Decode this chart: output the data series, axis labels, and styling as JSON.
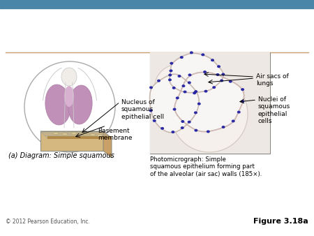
{
  "bg_color": "#ffffff",
  "top_bar_color": "#4a86a8",
  "top_bar_height": 12,
  "divider_color": "#c8a070",
  "copyright_text": "© 2012 Pearson Education, Inc.",
  "figure_label": "Figure 3.18a",
  "label_a": "(a) Diagram: Simple squamous",
  "label_nucleus": "Nucleus of\nsquamous\nepithelial cell",
  "label_basement": "Basement\nmembrane",
  "label_air_sacs": "Air sacs of\nlungs",
  "label_nuclei": "Nuclei of\nsquamous\nepithelial\ncells",
  "label_photo": "Photomicrograph: Simple\nsquamous epithelium forming part\nof the alveolar (air sac) walls (185×).",
  "lung_color": "#c090b8",
  "lung_edge": "#b080a8",
  "tissue_top": "#e8d4a8",
  "tissue_front": "#d4b880",
  "tissue_side": "#c8a068",
  "tissue_edge": "#888878",
  "bm_color": "#b08848",
  "photo_bg": "#e8e0d8",
  "photo_sac_bg": "#f0ece8",
  "photo_sac_edge": "#c8b8b0",
  "nuclei_color": "#1818a0",
  "font_size_small": 6.5,
  "font_size_label": 7,
  "font_size_caption": 6.2,
  "font_size_figure": 8,
  "font_size_copy": 5.5
}
